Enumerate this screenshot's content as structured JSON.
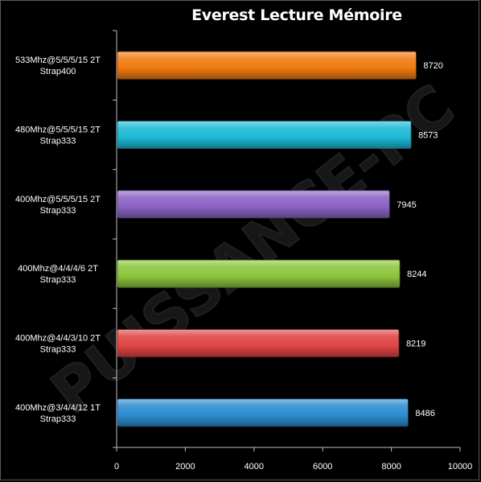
{
  "chart_data": {
    "type": "bar",
    "orientation": "horizontal",
    "title": "Everest Lecture Mémoire",
    "xlabel": "",
    "ylabel": "",
    "xlim": [
      0,
      10000
    ],
    "x_ticks": [
      0,
      2000,
      4000,
      6000,
      8000,
      10000
    ],
    "grid": false,
    "legend": "none",
    "watermark": "PUISSANCE-PC",
    "categories": [
      [
        "533Mhz@5/5/5/15  2T",
        "Strap400"
      ],
      [
        "480Mhz@5/5/5/15  2T",
        "Strap333"
      ],
      [
        "400Mhz@5/5/5/15  2T",
        "Strap333"
      ],
      [
        "400Mhz@4/4/4/6  2T",
        "Strap333"
      ],
      [
        "400Mhz@4/4/3/10  2T",
        "Strap333"
      ],
      [
        "400Mhz@3/4/4/12  1T",
        "Strap333"
      ]
    ],
    "values": [
      8720,
      8573,
      7945,
      8244,
      8219,
      8486
    ],
    "colors": [
      "#f07a10",
      "#1cb8d4",
      "#8a62c4",
      "#8cc43c",
      "#e04444",
      "#2c8cd0"
    ]
  }
}
